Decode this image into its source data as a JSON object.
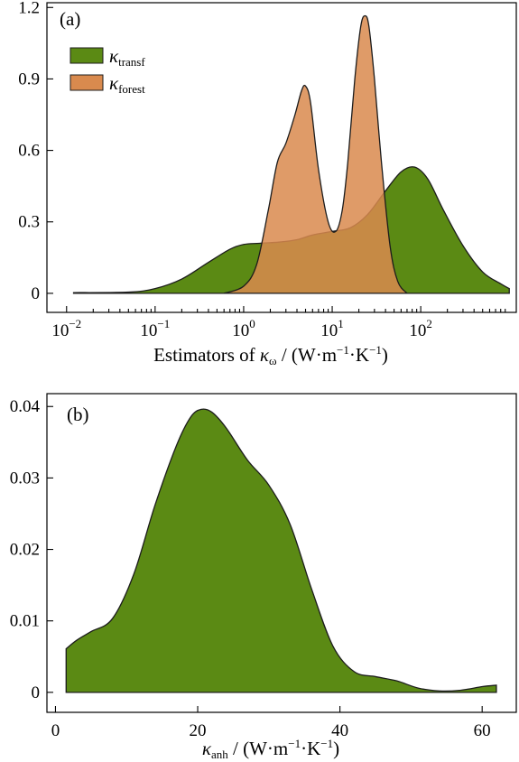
{
  "colors": {
    "transf": "#5b8a14",
    "forest": "#d98a4e",
    "forest_opacity": 0.85
  },
  "chart_data": [
    {
      "panel": "(a)",
      "type": "area",
      "xscale": "log",
      "xlabel_prefix": "Estimators of ",
      "xlabel_kappa": "κ",
      "xlabel_kappa_sub": "ω",
      "xlabel_units": " / (W·m",
      "xlabel_units_exp1": "−1",
      "xlabel_units_mid": "·K",
      "xlabel_units_exp2": "−1",
      "xlabel_units_end": ")",
      "xlim": [
        0.006,
        1200
      ],
      "ylim": [
        -0.08,
        1.22
      ],
      "xticks": [
        {
          "value": 0.01,
          "base": "10",
          "exp": "−2"
        },
        {
          "value": 0.1,
          "base": "10",
          "exp": "−1"
        },
        {
          "value": 1,
          "base": "10",
          "exp": "0"
        },
        {
          "value": 10,
          "base": "10",
          "exp": "1"
        },
        {
          "value": 100,
          "base": "10",
          "exp": "2"
        }
      ],
      "yticks": [
        {
          "value": 0,
          "label": "0"
        },
        {
          "value": 0.3,
          "label": "0.3"
        },
        {
          "value": 0.6,
          "label": "0.6"
        },
        {
          "value": 0.9,
          "label": "0.9"
        },
        {
          "value": 1.2,
          "label": "1.2"
        }
      ],
      "legend_position": "top-left",
      "series": [
        {
          "name": "κ",
          "name_sub": "transf",
          "color_key": "transf",
          "points": [
            [
              0.012,
              0.003
            ],
            [
              0.05,
              0.005
            ],
            [
              0.1,
              0.02
            ],
            [
              0.2,
              0.06
            ],
            [
              0.4,
              0.13
            ],
            [
              0.7,
              0.185
            ],
            [
              1.0,
              0.205
            ],
            [
              1.5,
              0.21
            ],
            [
              2.5,
              0.215
            ],
            [
              4.0,
              0.225
            ],
            [
              6.0,
              0.245
            ],
            [
              10.0,
              0.26
            ],
            [
              16.0,
              0.275
            ],
            [
              25.0,
              0.33
            ],
            [
              40.0,
              0.43
            ],
            [
              60.0,
              0.51
            ],
            [
              85.0,
              0.53
            ],
            [
              120.0,
              0.48
            ],
            [
              180.0,
              0.35
            ],
            [
              300.0,
              0.2
            ],
            [
              500.0,
              0.09
            ],
            [
              800.0,
              0.04
            ],
            [
              1000.0,
              0.02
            ]
          ]
        },
        {
          "name": "κ",
          "name_sub": "forest",
          "color_key": "forest",
          "points": [
            [
              0.6,
              0.0
            ],
            [
              1.0,
              0.03
            ],
            [
              1.4,
              0.12
            ],
            [
              1.9,
              0.35
            ],
            [
              2.4,
              0.55
            ],
            [
              3.0,
              0.63
            ],
            [
              3.8,
              0.75
            ],
            [
              4.5,
              0.85
            ],
            [
              5.0,
              0.87
            ],
            [
              5.7,
              0.8
            ],
            [
              7.0,
              0.52
            ],
            [
              9.0,
              0.3
            ],
            [
              11.0,
              0.26
            ],
            [
              13.0,
              0.35
            ],
            [
              15.0,
              0.55
            ],
            [
              18.0,
              0.9
            ],
            [
              21.0,
              1.12
            ],
            [
              23.5,
              1.165
            ],
            [
              26.0,
              1.12
            ],
            [
              30.0,
              0.9
            ],
            [
              36.0,
              0.55
            ],
            [
              45.0,
              0.2
            ],
            [
              55.0,
              0.05
            ],
            [
              70.0,
              0.0
            ]
          ]
        }
      ]
    },
    {
      "panel": "(b)",
      "type": "area",
      "xscale": "linear",
      "xlabel_kappa": "κ",
      "xlabel_kappa_sub": "anh",
      "xlabel_units": " / (W·m",
      "xlabel_units_exp1": "−1",
      "xlabel_units_mid": "·K",
      "xlabel_units_exp2": "−1",
      "xlabel_units_end": ")",
      "xlim": [
        -1.2,
        64.8
      ],
      "ylim": [
        -0.0028,
        0.0418
      ],
      "xticks": [
        {
          "value": 0,
          "label": "0"
        },
        {
          "value": 20,
          "label": "20"
        },
        {
          "value": 40,
          "label": "40"
        },
        {
          "value": 60,
          "label": "60"
        }
      ],
      "yticks": [
        {
          "value": 0,
          "label": "0"
        },
        {
          "value": 0.01,
          "label": "0.01"
        },
        {
          "value": 0.02,
          "label": "0.02"
        },
        {
          "value": 0.03,
          "label": "0.03"
        },
        {
          "value": 0.04,
          "label": "0.04"
        }
      ],
      "series": [
        {
          "color_key": "transf",
          "points": [
            [
              1.5,
              0.0061
            ],
            [
              3,
              0.0073
            ],
            [
              5,
              0.0085
            ],
            [
              8,
              0.0103
            ],
            [
              11,
              0.0165
            ],
            [
              14,
              0.0262
            ],
            [
              17,
              0.0345
            ],
            [
              19,
              0.0385
            ],
            [
              20.5,
              0.0396
            ],
            [
              22,
              0.0392
            ],
            [
              24,
              0.037
            ],
            [
              27,
              0.0325
            ],
            [
              30,
              0.029
            ],
            [
              33,
              0.0235
            ],
            [
              36,
              0.0145
            ],
            [
              39,
              0.0065
            ],
            [
              42,
              0.0029
            ],
            [
              45,
              0.0022
            ],
            [
              48,
              0.0016
            ],
            [
              51,
              0.0006
            ],
            [
              54,
              0.0002
            ],
            [
              57,
              0.0003
            ],
            [
              60,
              0.0008
            ],
            [
              62,
              0.001
            ]
          ]
        }
      ]
    }
  ]
}
